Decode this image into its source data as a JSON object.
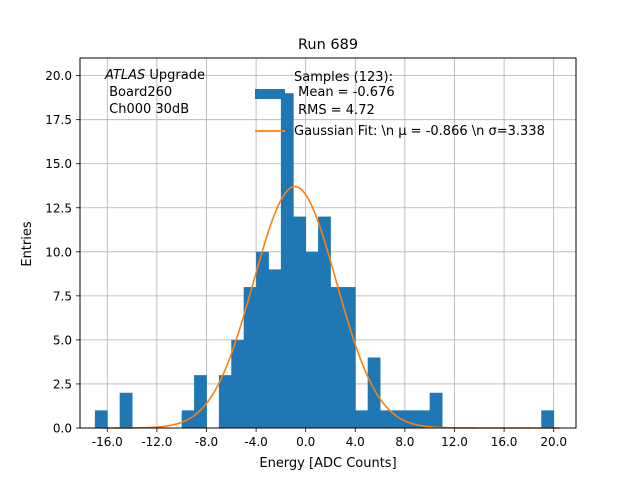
{
  "chart_data": {
    "type": "bar",
    "title": "Run 689",
    "xlabel": "Energy [ADC Counts]",
    "ylabel": "Entries",
    "xlim": [
      -18.2,
      21.8
    ],
    "ylim": [
      0,
      21
    ],
    "xticks": [
      -16,
      -12,
      -8,
      -4,
      0,
      4,
      8,
      12,
      16,
      20
    ],
    "xtick_labels": [
      "-16.0",
      "-12.0",
      "-8.0",
      "-4.0",
      "0.0",
      "4.0",
      "8.0",
      "12.0",
      "16.0",
      "20.0"
    ],
    "yticks": [
      0,
      2.5,
      5,
      7.5,
      10,
      12.5,
      15,
      17.5,
      20
    ],
    "ytick_labels": [
      "0.0",
      "2.5",
      "5.0",
      "7.5",
      "10.0",
      "12.5",
      "15.0",
      "17.5",
      "20.0"
    ],
    "grid": true,
    "bin_width": 1.0,
    "histogram": {
      "bin_centers": [
        -16.5,
        -14.5,
        -9.5,
        -8.5,
        -6.5,
        -5.5,
        -4.5,
        -3.5,
        -2.5,
        -1.5,
        -0.5,
        0.5,
        1.5,
        2.5,
        3.5,
        4.5,
        5.5,
        6.5,
        7.5,
        8.5,
        9.5,
        10.5,
        19.5
      ],
      "values": [
        1,
        2,
        1,
        3,
        3,
        5,
        8,
        10,
        9,
        19,
        12,
        10,
        12,
        8,
        8,
        1,
        4,
        1,
        1,
        1,
        1,
        2,
        1
      ],
      "color": "#1f77b4"
    },
    "fit": {
      "type": "gaussian",
      "mu": -0.866,
      "sigma": 3.338,
      "amplitude": 13.7,
      "color": "#ff7f0e"
    },
    "legend": {
      "placement": "top-center",
      "entries": [
        {
          "kind": "patch",
          "color": "#1f77b4",
          "lines": [
            "Samples (123):",
            " Mean = -0.676",
            " RMS = 4.72"
          ]
        },
        {
          "kind": "line",
          "color": "#ff7f0e",
          "lines": [
            "Gaussian Fit: \\n μ = -0.866 \\n σ=3.338"
          ]
        }
      ]
    },
    "annotation": {
      "italic": "ATLAS",
      "rest": " Upgrade",
      "lines": [
        " Board260",
        " Ch000 30dB"
      ]
    }
  }
}
